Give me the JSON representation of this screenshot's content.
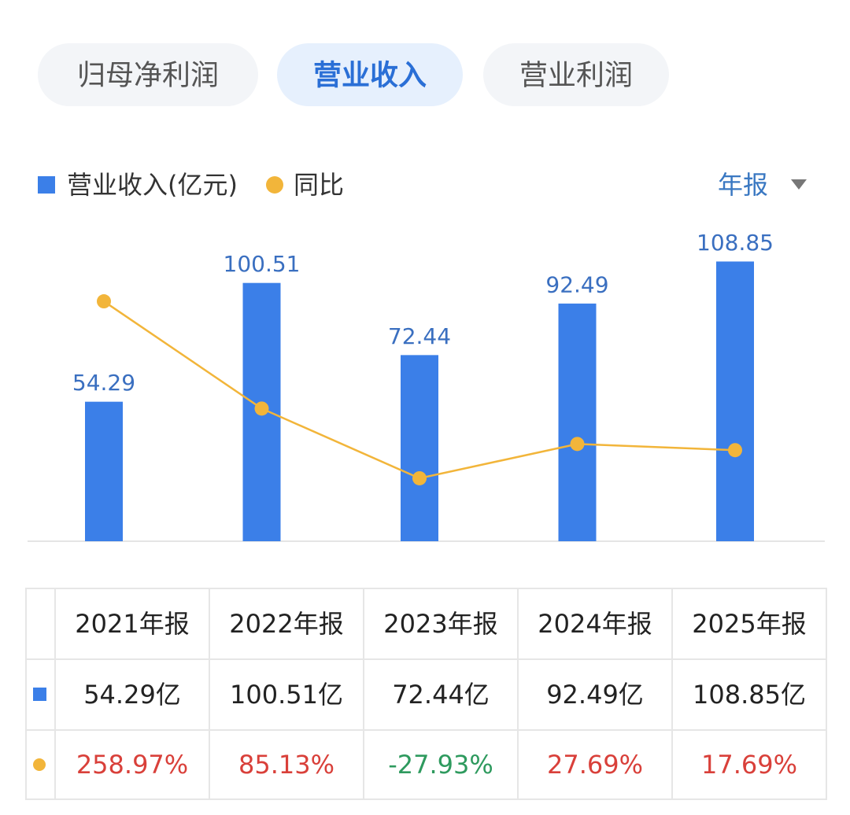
{
  "tabs": [
    "归母净利润",
    "营业收入",
    "营业利润"
  ],
  "active_tab": 1,
  "period_selector": "年报",
  "chart_data": {
    "type": "bar",
    "categories": [
      "2021年报",
      "2022年报",
      "2023年报",
      "2024年报",
      "2025年报"
    ],
    "ylim": [
      0,
      120
    ],
    "y2lim": [
      -130,
      370
    ],
    "series": [
      {
        "name": "营业收入(亿元)",
        "type": "bar",
        "color": "#3b7fe8",
        "values": [
          54.29,
          100.51,
          72.44,
          92.49,
          108.85
        ],
        "value_labels": [
          "54.29亿",
          "100.51亿",
          "72.44亿",
          "92.49亿",
          "108.85亿"
        ]
      },
      {
        "name": "同比",
        "type": "line",
        "axis": "y2",
        "color": "#f2b53a",
        "values": [
          258.97,
          85.13,
          -27.93,
          27.69,
          17.69
        ],
        "value_labels": [
          "258.97%",
          "85.13%",
          "-27.93%",
          "27.69%",
          "17.69%"
        ]
      }
    ]
  }
}
